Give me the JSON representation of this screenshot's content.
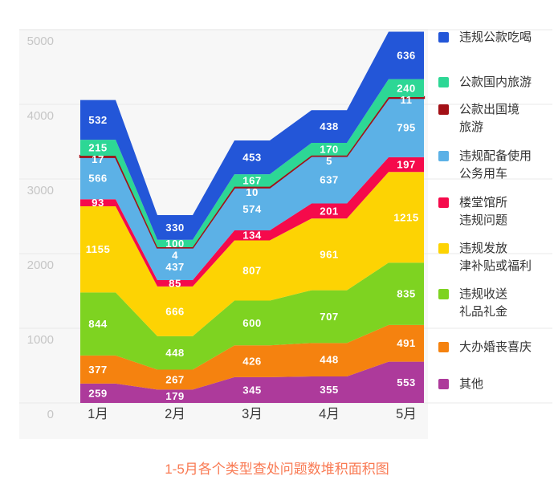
{
  "title": "1-5月各个类型查处问题数堆积面积图",
  "title_color": "#f97a53",
  "chart_data": {
    "type": "area",
    "stacked": true,
    "title": "1-5月各个类型查处问题数堆积面积图",
    "x_categories": [
      "1月",
      "2月",
      "3月",
      "4月",
      "5月"
    ],
    "y_ticks": [
      0,
      1000,
      2000,
      3000,
      4000,
      5000
    ],
    "ylim": [
      0,
      5000
    ],
    "grid": true,
    "legend_position": "right",
    "value_labels": true,
    "series_top_to_bottom": [
      {
        "name": "违规公款吃喝",
        "legend_lines": [
          "违规公款吃喝"
        ],
        "color": "#2356d8",
        "values": [
          532,
          330,
          453,
          438,
          636
        ]
      },
      {
        "name": "公款国内旅游",
        "legend_lines": [
          "公款国内旅游"
        ],
        "color": "#2dd795",
        "values": [
          215,
          100,
          167,
          170,
          240
        ]
      },
      {
        "name": "公款出国境旅游",
        "legend_lines": [
          "公款出国境",
          "旅游"
        ],
        "color": "#a31016",
        "values": [
          17,
          4,
          10,
          5,
          11
        ]
      },
      {
        "name": "违规配备使用公务用车",
        "legend_lines": [
          "违规配备使用",
          "公务用车"
        ],
        "color": "#5cb1e6",
        "values": [
          566,
          437,
          574,
          637,
          795
        ]
      },
      {
        "name": "楼堂馆所违规问题",
        "legend_lines": [
          "楼堂馆所",
          "违规问题"
        ],
        "color": "#f50a4b",
        "values": [
          93,
          85,
          134,
          201,
          197
        ]
      },
      {
        "name": "违规发放津补贴或福利",
        "legend_lines": [
          "违规发放",
          "津补贴或福利"
        ],
        "color": "#fdd303",
        "values": [
          1155,
          666,
          807,
          961,
          1215
        ]
      },
      {
        "name": "违规收送礼品礼金",
        "legend_lines": [
          "违规收送",
          "礼品礼金"
        ],
        "color": "#7ed321",
        "values": [
          844,
          448,
          600,
          707,
          835
        ]
      },
      {
        "name": "大办婚丧喜庆",
        "legend_lines": [
          "大办婚丧喜庆"
        ],
        "color": "#f5820f",
        "values": [
          377,
          267,
          426,
          448,
          491
        ]
      },
      {
        "name": "其他",
        "legend_lines": [
          "其他"
        ],
        "color": "#ad3a9b",
        "values": [
          259,
          179,
          345,
          355,
          553
        ]
      }
    ]
  }
}
